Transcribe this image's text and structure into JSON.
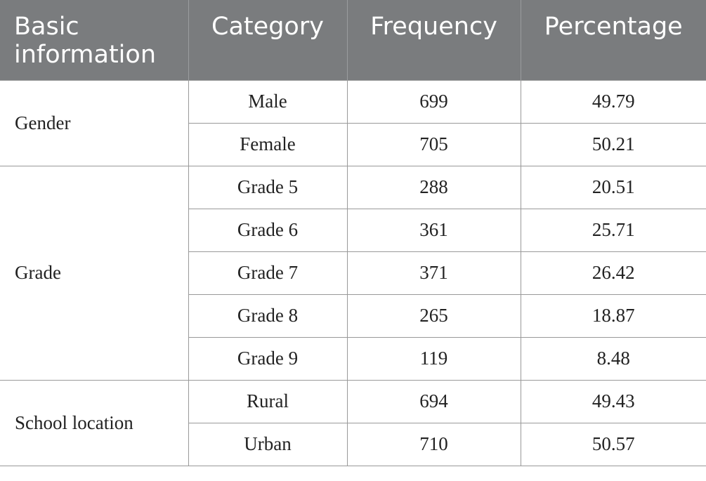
{
  "table": {
    "headers": [
      "Basic information",
      "Category",
      "Frequency",
      "Percentage"
    ],
    "groups": [
      {
        "name": "Gender",
        "rows": [
          {
            "category": "Male",
            "frequency": "699",
            "percentage": "49.79"
          },
          {
            "category": "Female",
            "frequency": "705",
            "percentage": "50.21"
          }
        ]
      },
      {
        "name": "Grade",
        "rows": [
          {
            "category": "Grade 5",
            "frequency": "288",
            "percentage": "20.51"
          },
          {
            "category": "Grade 6",
            "frequency": "361",
            "percentage": "25.71"
          },
          {
            "category": "Grade 7",
            "frequency": "371",
            "percentage": "26.42"
          },
          {
            "category": "Grade 8",
            "frequency": "265",
            "percentage": "18.87"
          },
          {
            "category": "Grade 9",
            "frequency": "119",
            "percentage": "8.48"
          }
        ]
      },
      {
        "name": "School location",
        "rows": [
          {
            "category": "Rural",
            "frequency": "694",
            "percentage": "49.43"
          },
          {
            "category": "Urban",
            "frequency": "710",
            "percentage": "50.57"
          }
        ]
      }
    ]
  }
}
